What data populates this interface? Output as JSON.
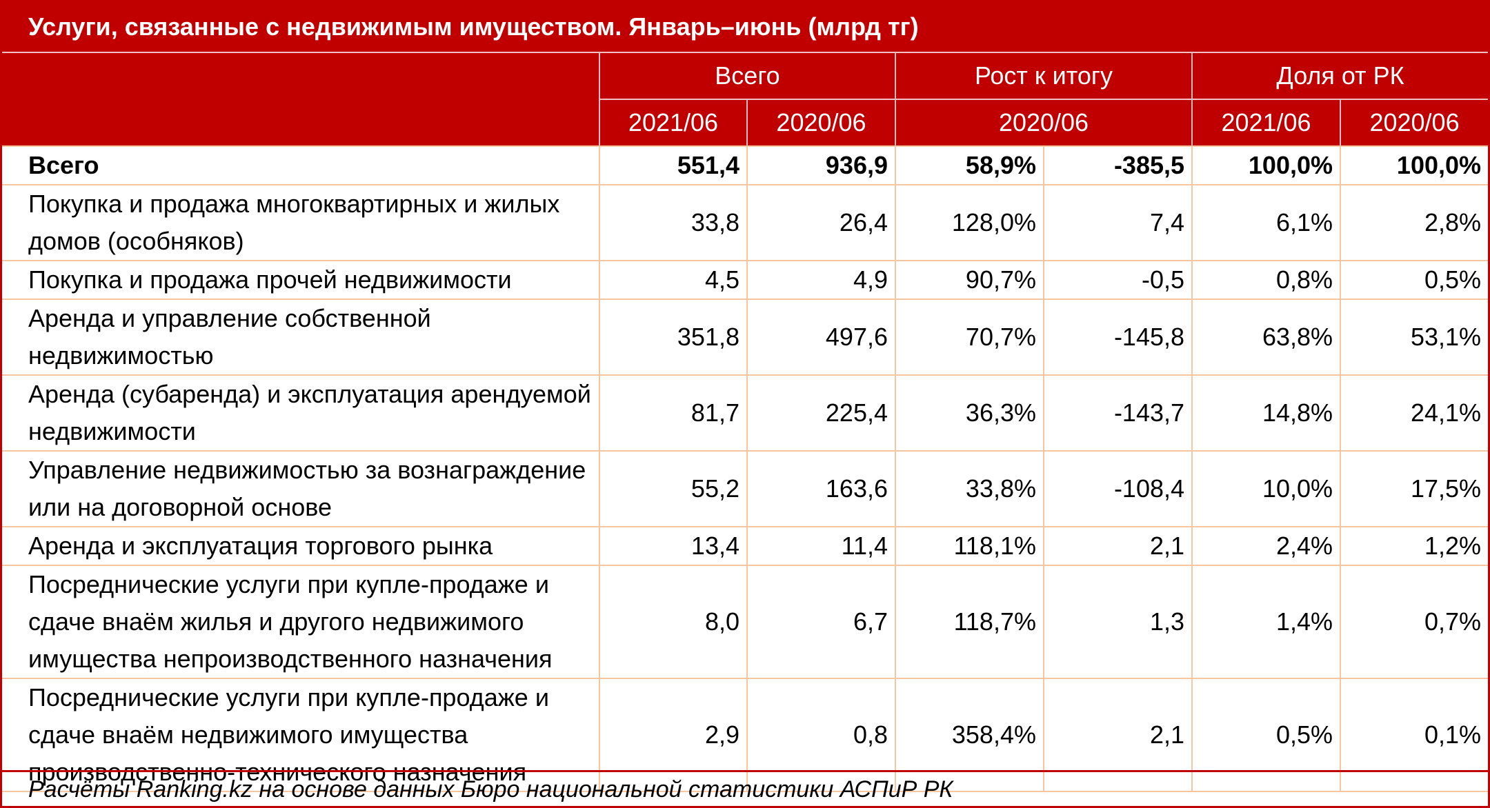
{
  "title": "Услуги, связанные с недвижимым имуществом. Январь–июнь (млрд тг)",
  "header": {
    "group_total": "Всего",
    "group_growth": "Рост к итогу",
    "group_share": "Доля от РК",
    "sub_total_2021": "2021/06",
    "sub_total_2020": "2020/06",
    "sub_growth": "2020/06",
    "sub_share_2021": "2021/06",
    "sub_share_2020": "2020/06"
  },
  "rows": [
    {
      "label": "Всего",
      "v2021": "551,4",
      "v2020": "936,9",
      "growth_pct": "58,9%",
      "growth_abs": "-385,5",
      "share2021": "100,0%",
      "share2020": "100,0%"
    },
    {
      "label": "Покупка и продажа многоквартирных и жилых домов (особняков)",
      "v2021": "33,8",
      "v2020": "26,4",
      "growth_pct": "128,0%",
      "growth_abs": "7,4",
      "share2021": "6,1%",
      "share2020": "2,8%"
    },
    {
      "label": "Покупка и продажа прочей недвижимости",
      "v2021": "4,5",
      "v2020": "4,9",
      "growth_pct": "90,7%",
      "growth_abs": "-0,5",
      "share2021": "0,8%",
      "share2020": "0,5%"
    },
    {
      "label": "Аренда и управление собственной недвижимостью",
      "v2021": "351,8",
      "v2020": "497,6",
      "growth_pct": "70,7%",
      "growth_abs": "-145,8",
      "share2021": "63,8%",
      "share2020": "53,1%"
    },
    {
      "label": "Аренда (субаренда) и эксплуатация арендуемой недвижимости",
      "v2021": "81,7",
      "v2020": "225,4",
      "growth_pct": "36,3%",
      "growth_abs": "-143,7",
      "share2021": "14,8%",
      "share2020": "24,1%"
    },
    {
      "label": "Управление недвижимостью за вознаграждение или на договорной основе",
      "v2021": "55,2",
      "v2020": "163,6",
      "growth_pct": "33,8%",
      "growth_abs": "-108,4",
      "share2021": "10,0%",
      "share2020": "17,5%"
    },
    {
      "label": "Аренда и эксплуатация торгового рынка",
      "v2021": "13,4",
      "v2020": "11,4",
      "growth_pct": "118,1%",
      "growth_abs": "2,1",
      "share2021": "2,4%",
      "share2020": "1,2%"
    },
    {
      "label": "Посреднические услуги при купле-продаже и сдаче внаём жилья и другого недвижимого имущества непроизводственного назначения",
      "v2021": "8,0",
      "v2020": "6,7",
      "growth_pct": "118,7%",
      "growth_abs": "1,3",
      "share2021": "1,4%",
      "share2020": "0,7%"
    },
    {
      "label": "Посреднические услуги при купле-продаже и сдаче внаём недвижимого имущества производственно-технического назначения",
      "v2021": "2,9",
      "v2020": "0,8",
      "growth_pct": "358,4%",
      "growth_abs": "2,1",
      "share2021": "0,5%",
      "share2020": "0,1%"
    }
  ],
  "footer": "Расчёты Ranking.kz на основе данных Бюро национальной статистики АСПиР РК"
}
